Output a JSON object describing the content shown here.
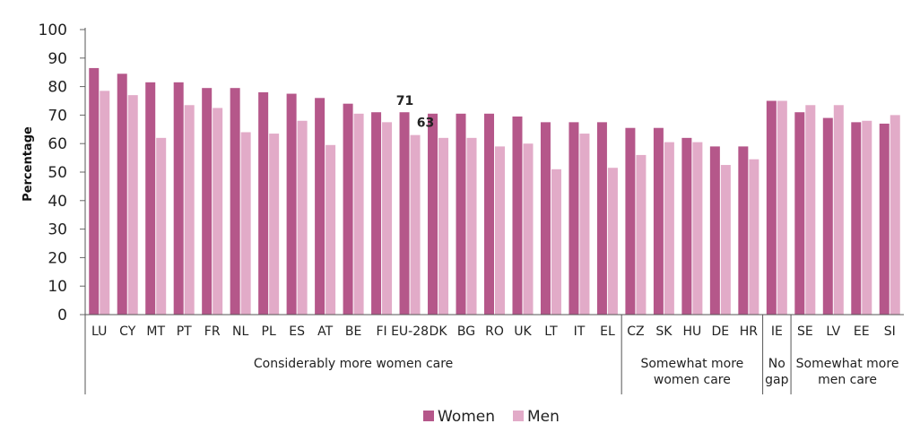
{
  "chart_data": {
    "type": "bar",
    "ylabel": "Percentage",
    "ylim": [
      0,
      100
    ],
    "yticks": [
      0,
      10,
      20,
      30,
      40,
      50,
      60,
      70,
      80,
      90,
      100
    ],
    "categories": [
      "LU",
      "CY",
      "MT",
      "PT",
      "FR",
      "NL",
      "PL",
      "ES",
      "AT",
      "BE",
      "FI",
      "EU-28",
      "DK",
      "BG",
      "RO",
      "UK",
      "LT",
      "IT",
      "EL",
      "CZ",
      "SK",
      "HU",
      "DE",
      "HR",
      "IE",
      "SE",
      "LV",
      "EE",
      "SI"
    ],
    "series": [
      {
        "name": "Women",
        "color": "#b5578a",
        "values": [
          86.5,
          84.5,
          81.5,
          81.5,
          79.5,
          79.5,
          78,
          77.5,
          76,
          74,
          71,
          71,
          70.5,
          70.5,
          70.5,
          69.5,
          67.5,
          67.5,
          67.5,
          65.5,
          65.5,
          62,
          59,
          59,
          75,
          71,
          69,
          67.5,
          67
        ]
      },
      {
        "name": "Men",
        "color": "#e2abc8",
        "values": [
          78.5,
          77,
          62,
          73.5,
          72.5,
          64,
          63.5,
          68,
          59.5,
          70.5,
          67.5,
          63,
          62,
          62,
          59,
          60,
          51,
          63.5,
          51.5,
          56,
          60.5,
          60.5,
          52.5,
          54.5,
          75,
          73.5,
          73.5,
          68,
          70
        ]
      }
    ],
    "annotations": [
      {
        "category": "EU-28",
        "series": "Women",
        "text": "71"
      },
      {
        "category": "EU-28",
        "series": "Men",
        "text": "63"
      }
    ],
    "groups": [
      {
        "lines": [
          "Considerably more women care"
        ],
        "start": 0,
        "end": 18
      },
      {
        "lines": [
          "Somewhat more",
          "women care"
        ],
        "start": 19,
        "end": 23
      },
      {
        "lines": [
          "No",
          "gap"
        ],
        "start": 24,
        "end": 24
      },
      {
        "lines": [
          "Somewhat more",
          "men care"
        ],
        "start": 25,
        "end": 28
      }
    ],
    "legend": {
      "position": "bottom",
      "items": [
        "Women",
        "Men"
      ]
    }
  }
}
